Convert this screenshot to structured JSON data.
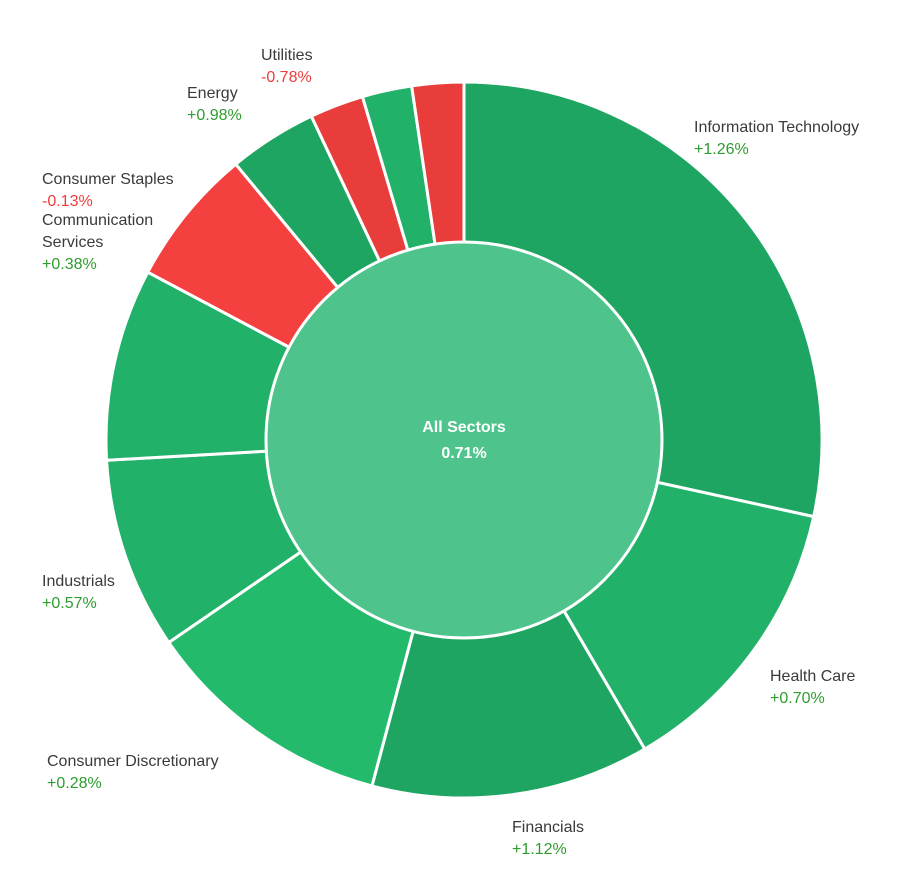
{
  "center": {
    "label": "All Sectors",
    "value": "0.71%"
  },
  "colors": {
    "positive_text": "#2e9c2e",
    "negative_text": "#f03b3b",
    "center_fill": "#4ec38b"
  },
  "chart_data": {
    "type": "pie",
    "variant": "donut",
    "center_label": "All Sectors",
    "center_value": "0.71%",
    "series": [
      {
        "name": "Information Technology",
        "share": 29.2,
        "change": "+1.26%",
        "color": "#1fa562"
      },
      {
        "name": "Health Care",
        "share": 13.5,
        "change": "+0.70%",
        "color": "#22b168"
      },
      {
        "name": "Financials",
        "share": 12.9,
        "change": "+1.12%",
        "color": "#1fa562"
      },
      {
        "name": "Consumer Discretionary",
        "share": 11.6,
        "change": "+0.28%",
        "color": "#23bb6b"
      },
      {
        "name": "Industrials",
        "share": 8.9,
        "change": "+0.57%",
        "color": "#22b168"
      },
      {
        "name": "Communication Services",
        "share": 8.9,
        "change": "+0.38%",
        "color": "#22b168"
      },
      {
        "name": "Consumer Staples",
        "share": 6.4,
        "change": "-0.13%",
        "color": "#f54040"
      },
      {
        "name": "Energy",
        "share": 4.1,
        "change": "+0.98%",
        "color": "#1fa562"
      },
      {
        "name": "Utilities",
        "share": 2.5,
        "change": "-0.78%",
        "color": "#e83d3b"
      },
      {
        "name": "",
        "share": 2.3,
        "change": "",
        "color": "#22b168"
      },
      {
        "name": "",
        "share": 2.4,
        "change": "",
        "color": "#e83d3b"
      }
    ]
  }
}
